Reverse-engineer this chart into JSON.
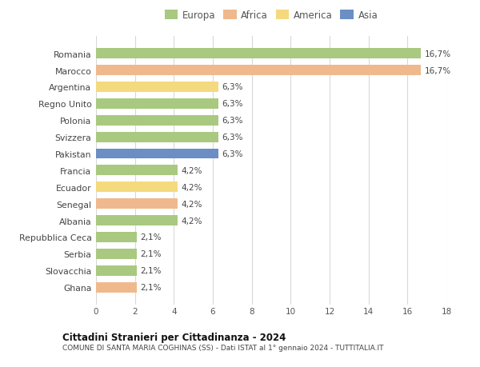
{
  "countries": [
    "Romania",
    "Marocco",
    "Argentina",
    "Regno Unito",
    "Polonia",
    "Svizzera",
    "Pakistan",
    "Francia",
    "Ecuador",
    "Senegal",
    "Albania",
    "Repubblica Ceca",
    "Serbia",
    "Slovacchia",
    "Ghana"
  ],
  "values": [
    16.7,
    16.7,
    6.3,
    6.3,
    6.3,
    6.3,
    6.3,
    4.2,
    4.2,
    4.2,
    4.2,
    2.1,
    2.1,
    2.1,
    2.1
  ],
  "labels": [
    "16,7%",
    "16,7%",
    "6,3%",
    "6,3%",
    "6,3%",
    "6,3%",
    "6,3%",
    "4,2%",
    "4,2%",
    "4,2%",
    "4,2%",
    "2,1%",
    "2,1%",
    "2,1%",
    "2,1%"
  ],
  "colors": [
    "#a8c97f",
    "#f0b98d",
    "#f5d97e",
    "#a8c97f",
    "#a8c97f",
    "#a8c97f",
    "#6b8ec4",
    "#a8c97f",
    "#f5d97e",
    "#f0b98d",
    "#a8c97f",
    "#a8c97f",
    "#a8c97f",
    "#a8c97f",
    "#f0b98d"
  ],
  "legend": {
    "Europa": "#a8c97f",
    "Africa": "#f0b98d",
    "America": "#f5d97e",
    "Asia": "#6b8ec4"
  },
  "xlim": [
    0,
    18
  ],
  "xticks": [
    0,
    2,
    4,
    6,
    8,
    10,
    12,
    14,
    16,
    18
  ],
  "title": "Cittadini Stranieri per Cittadinanza - 2024",
  "subtitle": "COMUNE DI SANTA MARIA COGHINAS (SS) - Dati ISTAT al 1° gennaio 2024 - TUTTITALIA.IT",
  "bg_color": "#ffffff",
  "grid_color": "#d8d8d8"
}
